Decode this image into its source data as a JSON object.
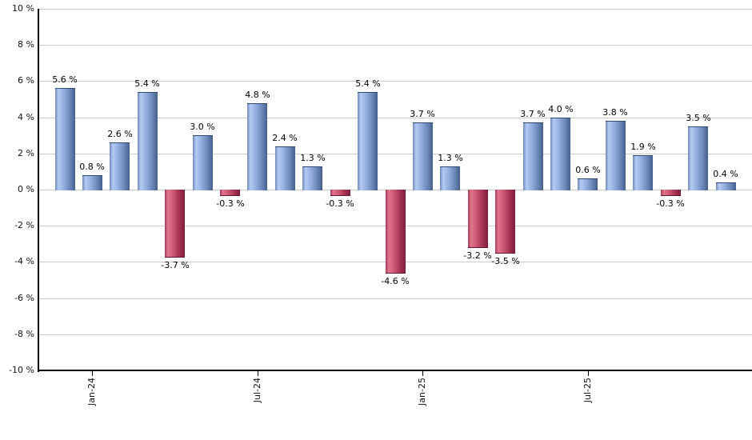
{
  "chart_data": {
    "type": "bar",
    "title": "",
    "xlabel": "",
    "ylabel": "",
    "values": [
      5.6,
      0.8,
      2.6,
      5.4,
      -3.7,
      3.0,
      -0.3,
      4.8,
      2.4,
      1.3,
      -0.3,
      5.4,
      -4.6,
      3.7,
      1.3,
      -3.2,
      -3.5,
      3.7,
      4.0,
      0.6,
      3.8,
      1.9,
      -0.3,
      3.5,
      0.4
    ],
    "bar_labels": [
      "5.6 %",
      "0.8 %",
      "2.6 %",
      "5.4 %",
      "-3.7 %",
      "3.0 %",
      "-0.3 %",
      "4.8 %",
      "2.4 %",
      "1.3 %",
      "-0.3 %",
      "5.4 %",
      "-4.6 %",
      "3.7 %",
      "1.3 %",
      "-3.2 %",
      "-3.5 %",
      "3.7 %",
      "4.0 %",
      "0.6 %",
      "3.8 %",
      "1.9 %",
      "-0.3 %",
      "3.5 %",
      "0.4 %"
    ],
    "x_tick_labels": [
      "Jan-24",
      "Jul-24",
      "Jan-25",
      "Jul-25"
    ],
    "x_tick_indices": [
      1,
      7,
      13,
      19
    ],
    "y_tick_labels": [
      "10 %",
      "8 %",
      "6 %",
      "4 %",
      "2 %",
      "0 %",
      "-2 %",
      "-4 %",
      "-6 %",
      "-8 %",
      "-10 %"
    ],
    "y_tick_values": [
      10,
      8,
      6,
      4,
      2,
      0,
      -2,
      -4,
      -6,
      -8,
      -10
    ],
    "ylim": [
      -10,
      10
    ],
    "grid": true,
    "legend": false,
    "colors": {
      "positive_bar": "#8fabdc",
      "positive_bar_dark": "#46608d",
      "positive_bar_light": "#b4cbf4",
      "negative_bar": "#c65570",
      "negative_bar_dark": "#7e1d3c",
      "negative_bar_light": "#e1768e",
      "gridline": "#cccccc",
      "axis": "#000000",
      "label_text": "#000000"
    }
  }
}
